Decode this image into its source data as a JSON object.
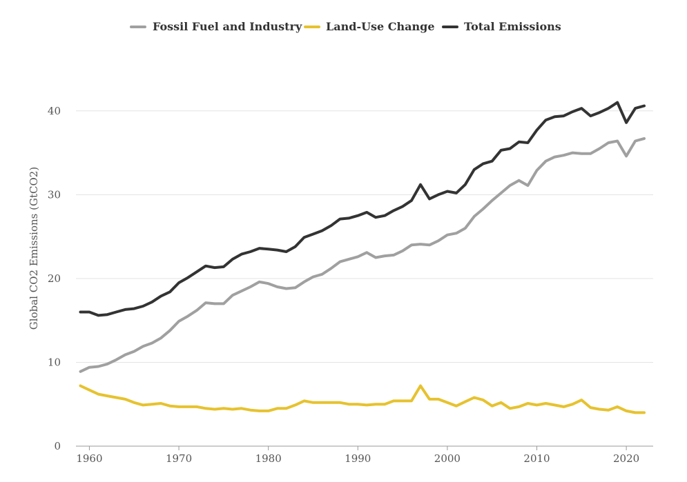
{
  "chart_data": {
    "type": "line",
    "title": "",
    "xlabel": "",
    "ylabel": "Global CO2 Emissions (GtCO2)",
    "xlim": [
      1958.5,
      2023
    ],
    "ylim": [
      0,
      45
    ],
    "yticks": [
      0,
      10,
      20,
      30,
      40
    ],
    "xticks": [
      1960,
      1970,
      1980,
      1990,
      2000,
      2010,
      2020
    ],
    "grid": "horizontal",
    "legend_position": "top-center",
    "x": [
      1959,
      1960,
      1961,
      1962,
      1963,
      1964,
      1965,
      1966,
      1967,
      1968,
      1969,
      1970,
      1971,
      1972,
      1973,
      1974,
      1975,
      1976,
      1977,
      1978,
      1979,
      1980,
      1981,
      1982,
      1983,
      1984,
      1985,
      1986,
      1987,
      1988,
      1989,
      1990,
      1991,
      1992,
      1993,
      1994,
      1995,
      1996,
      1997,
      1998,
      1999,
      2000,
      2001,
      2002,
      2003,
      2004,
      2005,
      2006,
      2007,
      2008,
      2009,
      2010,
      2011,
      2012,
      2013,
      2014,
      2015,
      2016,
      2017,
      2018,
      2019,
      2020,
      2021,
      2022
    ],
    "series": [
      {
        "name": "Fossil Fuel and Industry",
        "color": "#a0a0a0",
        "values": [
          8.9,
          9.4,
          9.5,
          9.8,
          10.3,
          10.9,
          11.3,
          11.9,
          12.3,
          12.9,
          13.8,
          14.9,
          15.5,
          16.2,
          17.1,
          17.0,
          17.0,
          18.0,
          18.5,
          19.0,
          19.6,
          19.4,
          19.0,
          18.8,
          18.9,
          19.6,
          20.2,
          20.5,
          21.2,
          22.0,
          22.3,
          22.6,
          23.1,
          22.5,
          22.7,
          22.8,
          23.3,
          24.0,
          24.1,
          24.0,
          24.5,
          25.2,
          25.4,
          26.0,
          27.4,
          28.3,
          29.3,
          30.2,
          31.1,
          31.7,
          31.1,
          32.9,
          34.0,
          34.5,
          34.7,
          35.0,
          34.9,
          34.9,
          35.5,
          36.2,
          36.4,
          34.6,
          36.4,
          36.7
        ]
      },
      {
        "name": "Land-Use Change",
        "color": "#e6c22e",
        "values": [
          7.2,
          6.7,
          6.2,
          6.0,
          5.8,
          5.6,
          5.2,
          4.9,
          5.0,
          5.1,
          4.8,
          4.7,
          4.7,
          4.7,
          4.5,
          4.4,
          4.5,
          4.4,
          4.5,
          4.3,
          4.2,
          4.2,
          4.5,
          4.5,
          4.9,
          5.4,
          5.2,
          5.2,
          5.2,
          5.2,
          5.0,
          5.0,
          4.9,
          5.0,
          5.0,
          5.4,
          5.4,
          5.4,
          7.2,
          5.6,
          5.6,
          5.2,
          4.8,
          5.3,
          5.8,
          5.5,
          4.8,
          5.2,
          4.5,
          4.7,
          5.1,
          4.9,
          5.1,
          4.9,
          4.7,
          5.0,
          5.5,
          4.6,
          4.4,
          4.3,
          4.7,
          4.2,
          4.0,
          4.0
        ]
      },
      {
        "name": "Total Emissions",
        "color": "#333333",
        "values": [
          16.0,
          16.0,
          15.6,
          15.7,
          16.0,
          16.3,
          16.4,
          16.7,
          17.2,
          17.9,
          18.4,
          19.5,
          20.1,
          20.8,
          21.5,
          21.3,
          21.4,
          22.3,
          22.9,
          23.2,
          23.6,
          23.5,
          23.4,
          23.2,
          23.8,
          24.9,
          25.3,
          25.7,
          26.3,
          27.1,
          27.2,
          27.5,
          27.9,
          27.3,
          27.5,
          28.1,
          28.6,
          29.3,
          31.2,
          29.5,
          30.0,
          30.4,
          30.2,
          31.2,
          33.0,
          33.7,
          34.0,
          35.3,
          35.5,
          36.3,
          36.2,
          37.7,
          38.9,
          39.3,
          39.4,
          39.9,
          40.3,
          39.4,
          39.8,
          40.3,
          41.0,
          38.6,
          40.3,
          40.6
        ]
      }
    ]
  }
}
